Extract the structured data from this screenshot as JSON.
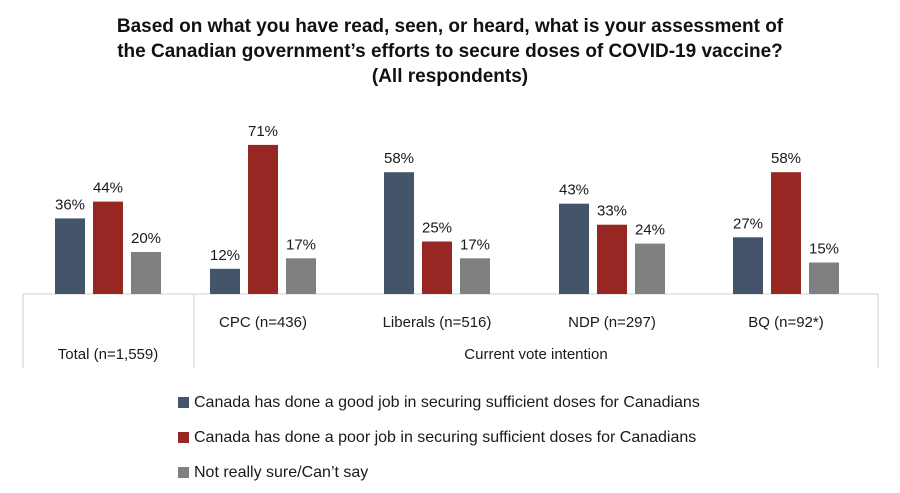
{
  "title_lines": [
    "Based on what you have read, seen, or heard, what is your assessment of",
    "the Canadian government’s efforts to secure doses of COVID-19 vaccine?",
    "(All respondents)"
  ],
  "chart_data": {
    "type": "bar",
    "title": "Based on what you have read, seen, or heard, what is your assessment of the Canadian government’s efforts to secure doses of COVID-19 vaccine? (All respondents)",
    "xlabel": "",
    "ylabel": "",
    "ylim": [
      0,
      100
    ],
    "grid": false,
    "legend_position": "bottom",
    "categories": [
      "Total (n=1,559)",
      "CPC (n=436)",
      "Liberals (n=516)",
      "NDP (n=297)",
      "BQ (n=92*)"
    ],
    "category_group_label": "Current vote intention",
    "grouped_categories": [
      "CPC (n=436)",
      "Liberals (n=516)",
      "NDP (n=297)",
      "BQ (n=92*)"
    ],
    "series": [
      {
        "name": "Canada has done a good job in securing sufficient doses for Canadians",
        "color": "#44546A",
        "values": [
          36,
          12,
          58,
          43,
          27
        ]
      },
      {
        "name": "Canada has done a poor job in securing sufficient doses for Canadians",
        "color": "#962722",
        "values": [
          44,
          71,
          25,
          33,
          58
        ]
      },
      {
        "name": "Not really sure/Can’t say",
        "color": "#808080",
        "values": [
          20,
          17,
          17,
          24,
          15
        ]
      }
    ],
    "value_suffix": "%"
  }
}
